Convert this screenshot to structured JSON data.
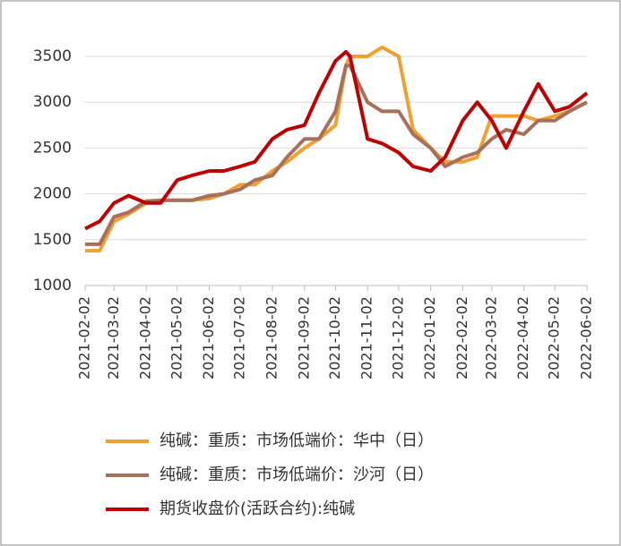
{
  "chart_data": {
    "type": "line",
    "x": [
      "2021-02-02",
      "2021-02-16",
      "2021-03-02",
      "2021-03-16",
      "2021-04-02",
      "2021-04-16",
      "2021-05-02",
      "2021-05-16",
      "2021-06-02",
      "2021-06-16",
      "2021-07-02",
      "2021-07-16",
      "2021-08-02",
      "2021-08-16",
      "2021-09-02",
      "2021-09-16",
      "2021-10-02",
      "2021-10-12",
      "2021-10-16",
      "2021-11-02",
      "2021-11-16",
      "2021-12-02",
      "2021-12-16",
      "2022-01-02",
      "2022-01-16",
      "2022-02-02",
      "2022-02-16",
      "2022-03-02",
      "2022-03-16",
      "2022-04-02",
      "2022-04-16",
      "2022-05-02",
      "2022-05-16",
      "2022-06-02"
    ],
    "series": [
      {
        "name": "纯碱：重质：市场低端价：华中（日）",
        "color": "#f0a030",
        "values": [
          1380,
          1380,
          1700,
          1780,
          1900,
          1930,
          1930,
          1930,
          1950,
          2000,
          2100,
          2100,
          2250,
          2350,
          2500,
          2600,
          2750,
          3400,
          3500,
          3500,
          3600,
          3500,
          2700,
          2500,
          2350,
          2350,
          2400,
          2850,
          2850,
          2850,
          2800,
          2850,
          2900,
          3000
        ]
      },
      {
        "name": "纯碱：重质：市场低端价：沙河（日）",
        "color": "#a8705a",
        "values": [
          1450,
          1450,
          1750,
          1800,
          1920,
          1930,
          1930,
          1930,
          1980,
          2000,
          2050,
          2150,
          2200,
          2400,
          2600,
          2600,
          2900,
          3400,
          3400,
          3000,
          2900,
          2900,
          2650,
          2500,
          2300,
          2400,
          2450,
          2600,
          2700,
          2650,
          2800,
          2800,
          2900,
          3000
        ]
      },
      {
        "name": "期货收盘价(活跃合约):纯碱",
        "color": "#c00000",
        "values": [
          1620,
          1700,
          1900,
          1980,
          1900,
          1900,
          2150,
          2200,
          2250,
          2250,
          2300,
          2350,
          2600,
          2700,
          2750,
          3100,
          3450,
          3550,
          3500,
          2600,
          2550,
          2450,
          2300,
          2250,
          2400,
          2800,
          3000,
          2800,
          2500,
          2900,
          3200,
          2900,
          2950,
          3100
        ]
      }
    ],
    "xlim": [
      "2021-02-02",
      "2022-06-02"
    ],
    "xticks": [
      "2021-02-02",
      "2021-03-02",
      "2021-04-02",
      "2021-05-02",
      "2021-06-02",
      "2021-07-02",
      "2021-08-02",
      "2021-09-02",
      "2021-10-02",
      "2021-11-02",
      "2021-12-02",
      "2022-01-02",
      "2022-02-02",
      "2022-03-02",
      "2022-04-02",
      "2022-05-02",
      "2022-06-02"
    ],
    "ylim": [
      1000,
      3500
    ],
    "yticks": [
      1000,
      1500,
      2000,
      2500,
      3000,
      3500
    ],
    "grid": true,
    "legend": "bottom"
  }
}
